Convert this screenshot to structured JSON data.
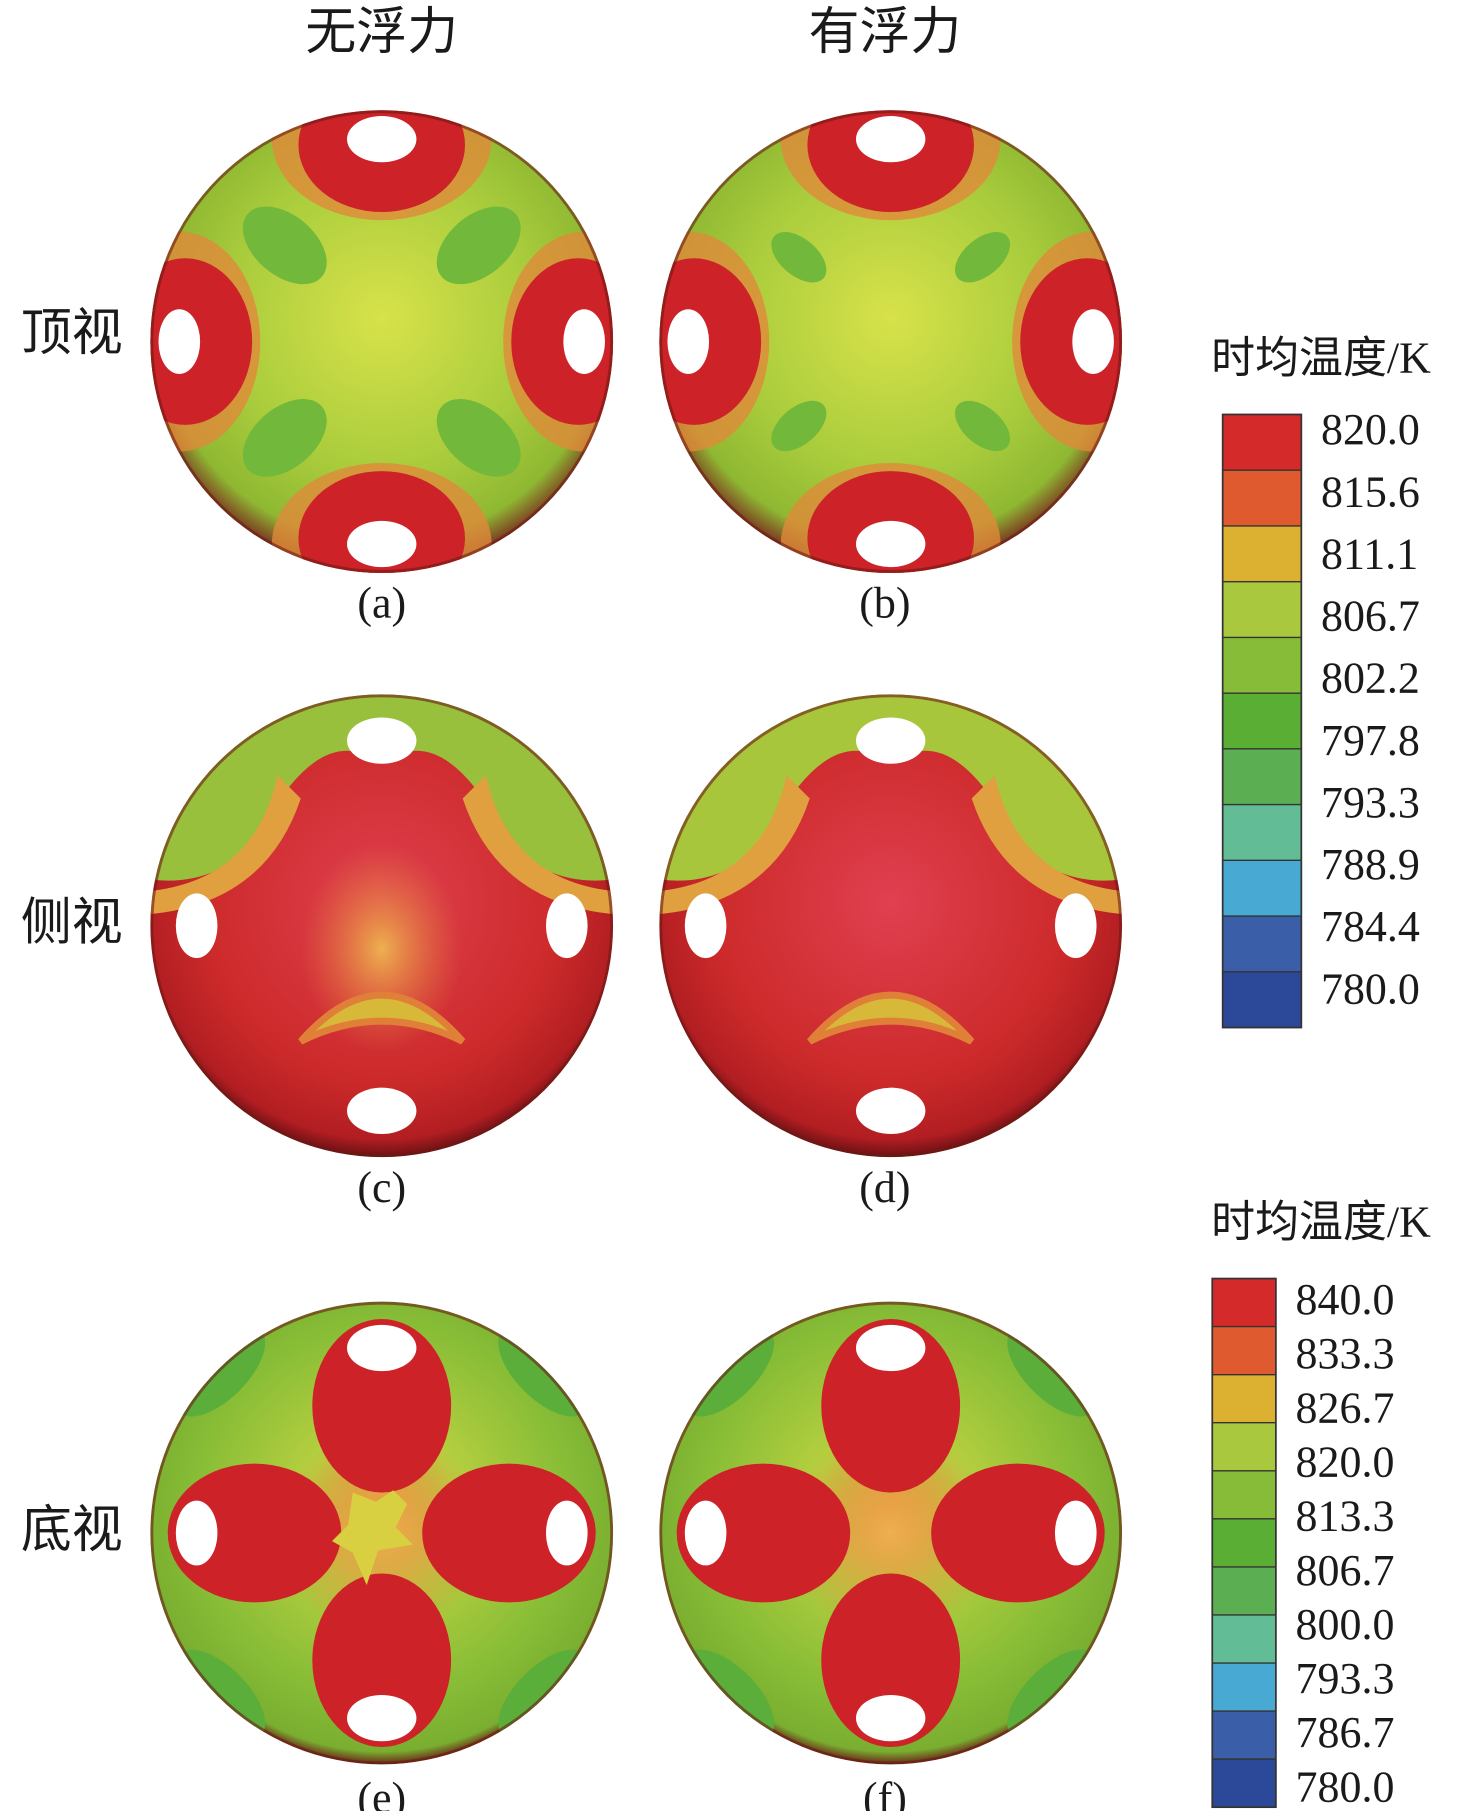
{
  "column_headers": [
    "无浮力",
    "有浮力"
  ],
  "row_labels": [
    "顶视",
    "侧视",
    "底视"
  ],
  "panels": [
    "(a)",
    "(b)",
    "(c)",
    "(d)",
    "(e)",
    "(f)"
  ],
  "colorbars": [
    {
      "title": "时均温度/K",
      "ticks": [
        "820.0",
        "815.6",
        "811.1",
        "806.7",
        "802.2",
        "797.8",
        "793.3",
        "788.9",
        "784.4",
        "780.0"
      ]
    },
    {
      "title": "时均温度/K",
      "ticks": [
        "840.0",
        "833.3",
        "826.7",
        "820.0",
        "813.3",
        "806.7",
        "800.0",
        "793.3",
        "786.7",
        "780.0"
      ]
    }
  ]
}
